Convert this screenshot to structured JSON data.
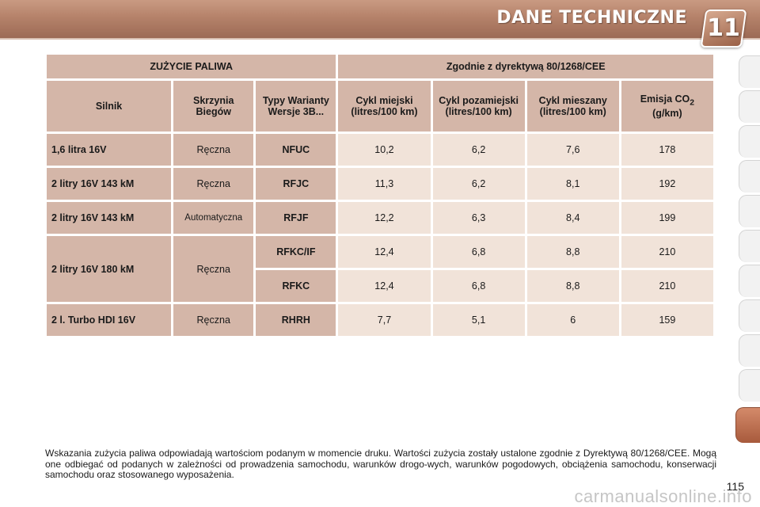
{
  "header": {
    "title": "DANE TECHNICZNE",
    "chapter": "11"
  },
  "table": {
    "group_left": "ZUŻYCIE PALIWA",
    "group_right": "Zgodnie z dyrektywą 80/1268/CEE",
    "col_engine": "Silnik",
    "col_gearbox": "Skrzynia Biegów",
    "col_types": "Typy Warianty Wersje 3B...",
    "col_urban": "Cykl miejski (litres/100 km)",
    "col_extra": "Cykl pozamiejski (litres/100 km)",
    "col_combined": "Cykl mieszany (litres/100 km)",
    "col_co2": "Emisja CO",
    "col_co2_sub": "2",
    "col_co2_unit": "(g/km)",
    "rows": [
      {
        "engine": "1,6 litra 16V",
        "gearbox": "Ręczna",
        "type": "NFUC",
        "urban": "10,2",
        "extra": "6,2",
        "combined": "7,6",
        "co2": "178"
      },
      {
        "engine": "2 litry 16V 143 kM",
        "gearbox": "Ręczna",
        "type": "RFJC",
        "urban": "11,3",
        "extra": "6,2",
        "combined": "8,1",
        "co2": "192"
      },
      {
        "engine": "2 litry 16V 143 kM",
        "gearbox": "Automatyczna",
        "type": "RFJF",
        "urban": "12,2",
        "extra": "6,3",
        "combined": "8,4",
        "co2": "199"
      },
      {
        "engine": "2 litry 16V 180 kM",
        "gearbox": "Ręczna",
        "type": "RFKC/IF",
        "urban": "12,4",
        "extra": "6,8",
        "combined": "8,8",
        "co2": "210"
      },
      {
        "type": "RFKC",
        "urban": "12,4",
        "extra": "6,8",
        "combined": "8,8",
        "co2": "210"
      },
      {
        "engine": "2 l. Turbo HDI 16V",
        "gearbox": "Ręczna",
        "type": "RHRH",
        "urban": "7,7",
        "extra": "5,1",
        "combined": "6",
        "co2": "159"
      }
    ]
  },
  "footer": {
    "note": "Wskazania zużycia paliwa odpowiadają wartościom podanym w momencie druku. Wartości zużycia zostały ustalone zgodnie z Dyrektywą 80/1268/CEE. Mogą one odbiegać od podanych w zależności od prowadzenia samochodu, warunków drogo-wych, warunków pogodowych, obciążenia samochodu, konserwacji samochodu oraz stosowanego wyposażenia.",
    "page_number": "115",
    "watermark": "carmanualsonline.info"
  },
  "colors": {
    "header_band": "#b5826a",
    "cell_dark": "#d4b6a8",
    "cell_light": "#f1e3d9",
    "tab_active": "#a85a3c"
  }
}
